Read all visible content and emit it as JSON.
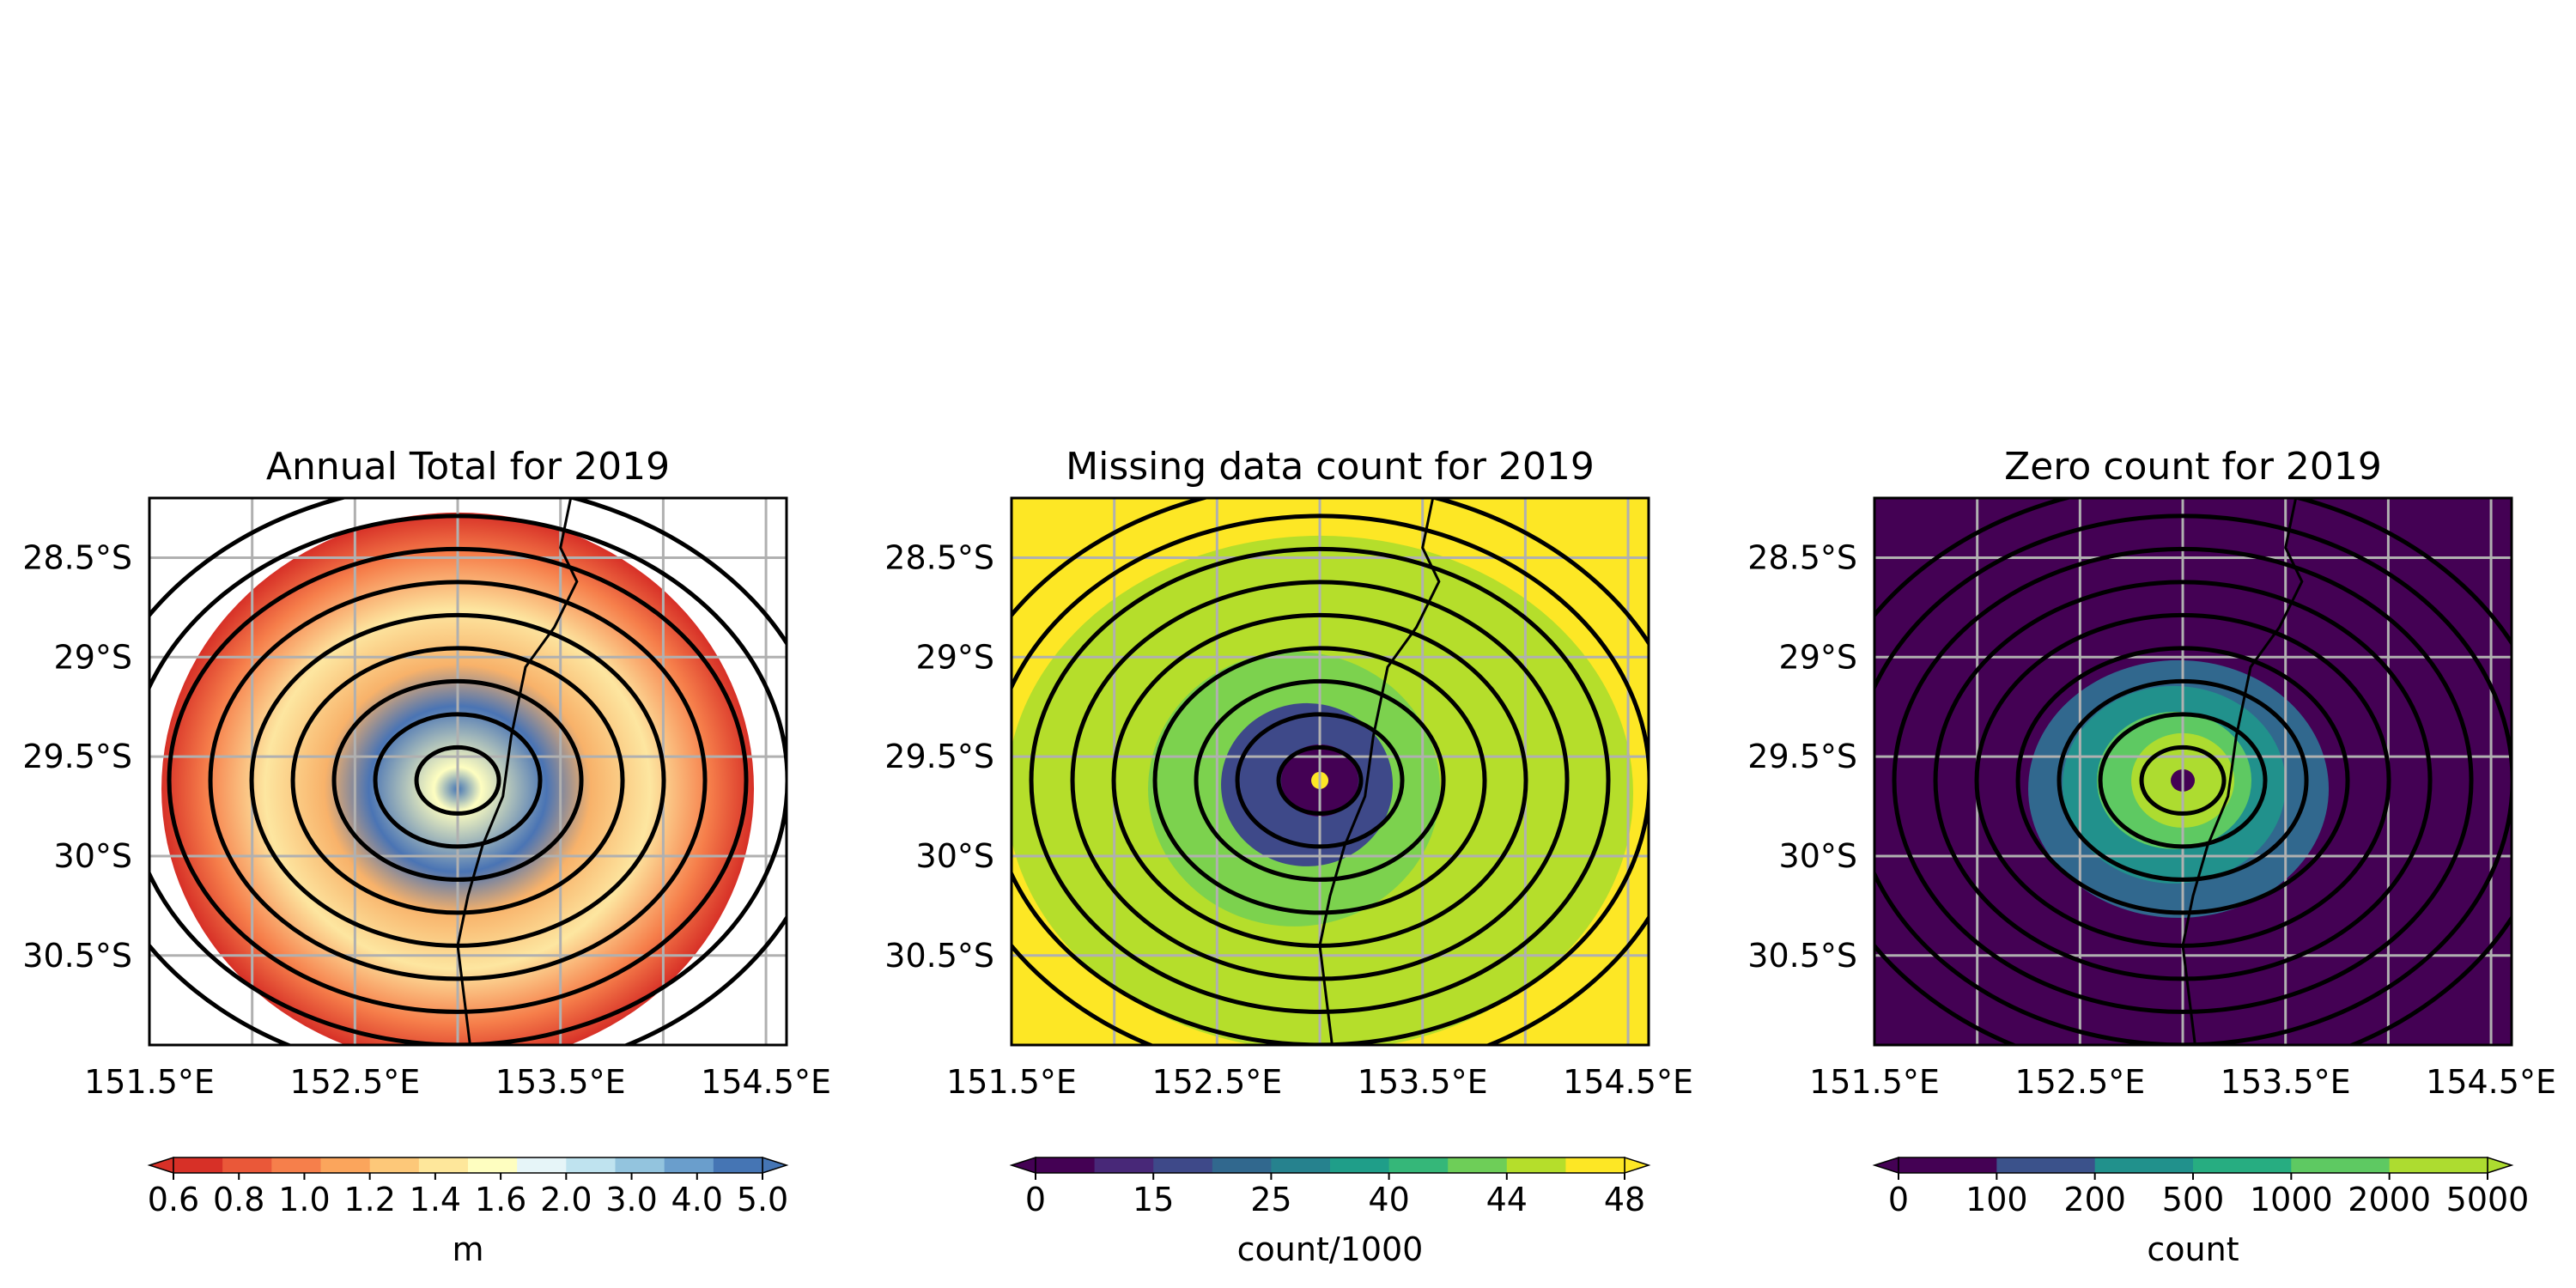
{
  "chart_data": [
    {
      "type": "heatmap",
      "title": "Annual Total for 2019",
      "x_ticks": [
        "151.5°E",
        "152.5°E",
        "153.5°E",
        "154.5°E"
      ],
      "y_ticks": [
        "28.5°S",
        "29°S",
        "29.5°S",
        "30°S",
        "30.5°S"
      ],
      "xlim": [
        151.5,
        154.6
      ],
      "ylim": [
        -30.95,
        -28.2
      ],
      "grid": true,
      "range_rings": 8,
      "colorbar": {
        "label": "m",
        "ticks": [
          "0.6",
          "0.8",
          "1.0",
          "1.2",
          "1.4",
          "1.6",
          "2.0",
          "3.0",
          "4.0",
          "5.0"
        ],
        "colors": [
          "#d73027",
          "#ea5839",
          "#f67f4b",
          "#fba55c",
          "#fdc879",
          "#fee79b",
          "#fefec0",
          "#e6f5f8",
          "#bfe3ef",
          "#93c4de",
          "#6a9ecc",
          "#4575b4"
        ],
        "extend": "both"
      }
    },
    {
      "type": "heatmap",
      "title": "Missing data count for 2019",
      "x_ticks": [
        "151.5°E",
        "152.5°E",
        "153.5°E",
        "154.5°E"
      ],
      "y_ticks": [
        "28.5°S",
        "29°S",
        "29.5°S",
        "30°S",
        "30.5°S"
      ],
      "xlim": [
        151.5,
        154.6
      ],
      "ylim": [
        -30.95,
        -28.2
      ],
      "grid": true,
      "range_rings": 8,
      "colorbar": {
        "label": "count/1000",
        "ticks": [
          "0",
          "15",
          "25",
          "40",
          "44",
          "48"
        ],
        "colors": [
          "#440154",
          "#482878",
          "#3e4989",
          "#31688e",
          "#26828e",
          "#1f9e89",
          "#35b779",
          "#6ece58",
          "#b5de2b",
          "#fde725"
        ],
        "extend": "both"
      }
    },
    {
      "type": "heatmap",
      "title": "Zero count for 2019",
      "x_ticks": [
        "151.5°E",
        "152.5°E",
        "153.5°E",
        "154.5°E"
      ],
      "y_ticks": [
        "28.5°S",
        "29°S",
        "29.5°S",
        "30°S",
        "30.5°S"
      ],
      "xlim": [
        151.5,
        154.6
      ],
      "ylim": [
        -30.95,
        -28.2
      ],
      "grid": true,
      "range_rings": 8,
      "colorbar": {
        "label": "count",
        "ticks": [
          "0",
          "100",
          "200",
          "500",
          "1000",
          "2000",
          "5000"
        ],
        "colors": [
          "#440154",
          "#3b528b",
          "#21918c",
          "#27ad81",
          "#5ec962",
          "#addc30"
        ],
        "extend": "both"
      }
    }
  ]
}
